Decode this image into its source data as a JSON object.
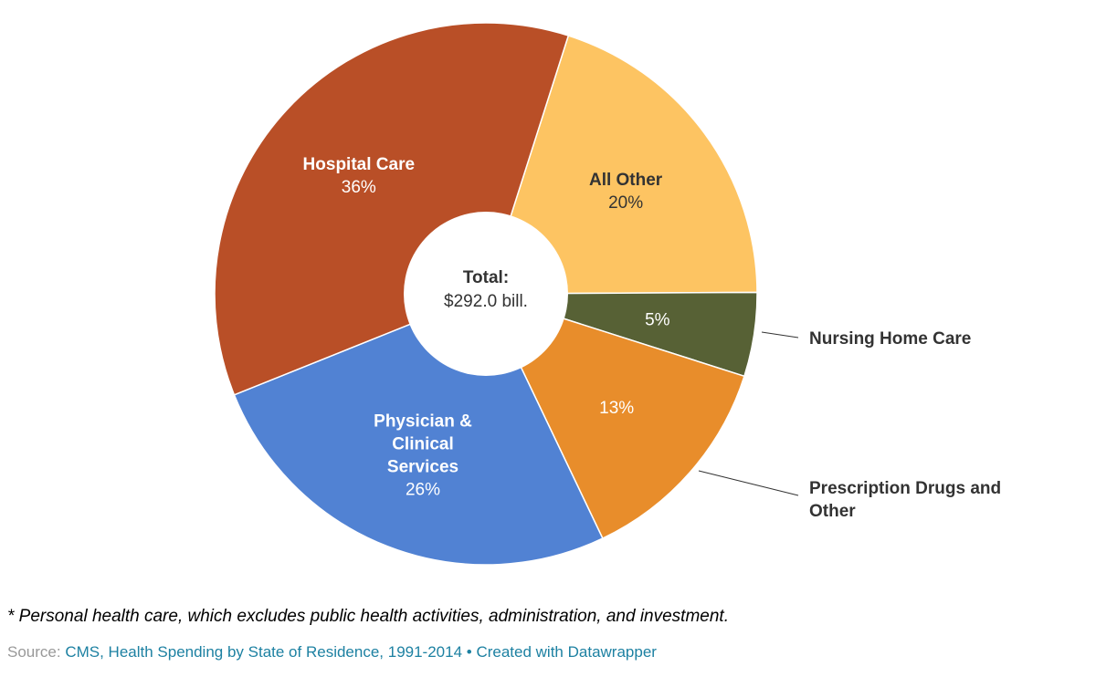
{
  "chart_data": {
    "type": "pie",
    "donut": true,
    "center_label": {
      "title": "Total:",
      "value": "$292.0 bill."
    },
    "start_angle_deg": 17.7,
    "slices": [
      {
        "name": "All Other",
        "value": 20,
        "label": "20%",
        "color": "#fdc462",
        "text_color": "#333333",
        "show_name_inside": true
      },
      {
        "name": "Nursing Home Care",
        "value": 5,
        "label": "5%",
        "color": "#576135",
        "text_color": "#ffffff",
        "show_name_inside": false,
        "external_label": [
          "Nursing Home Care"
        ]
      },
      {
        "name": "Prescription Drugs and Other",
        "value": 13,
        "label": "13%",
        "color": "#e88d2b",
        "text_color": "#ffffff",
        "show_name_inside": false,
        "external_label": [
          "Prescription Drugs and",
          "Other"
        ]
      },
      {
        "name": "Physician & Clinical Services",
        "value": 26,
        "label": "26%",
        "color": "#5182d3",
        "text_color": "#ffffff",
        "show_name_inside": true,
        "name_lines": [
          "Physician &",
          "Clinical",
          "Services"
        ]
      },
      {
        "name": "Hospital Care",
        "value": 36,
        "label": "36%",
        "color": "#b94f27",
        "text_color": "#ffffff",
        "show_name_inside": true,
        "name_lines": [
          "Hospital Care"
        ]
      }
    ]
  },
  "footer": {
    "note": "* Personal health care, which excludes public health activities, administration, and investment.",
    "source_prefix": "Source: ",
    "source_link": "CMS, Health Spending by State of Residence, 1991-2014",
    "separator": " • ",
    "credit": "Created with Datawrapper"
  }
}
